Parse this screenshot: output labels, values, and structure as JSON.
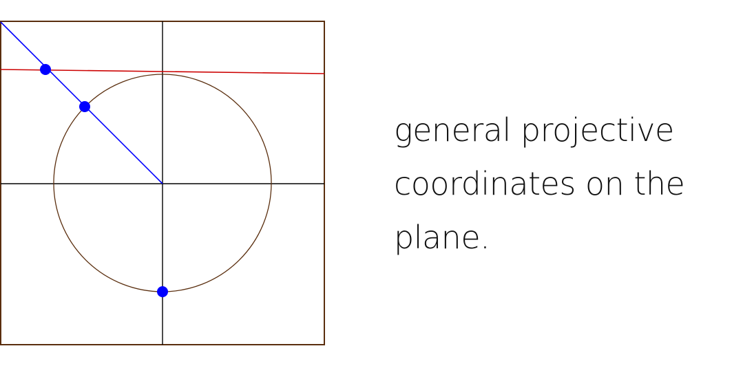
{
  "caption": {
    "lines": [
      "general projective",
      "coordinates on the",
      "plane."
    ]
  },
  "diagram": {
    "colors": {
      "frame": "#5a2e0e",
      "axes": "#000000",
      "circle": "#5a2e0e",
      "projection_line": "#0000ff",
      "horizon_line": "#cc0000",
      "points": "#0000ff"
    },
    "elements": [
      "frame",
      "x-axis",
      "y-axis",
      "circle",
      "projection-line",
      "horizon-line",
      "point-south-pole",
      "point-on-circle",
      "point-on-horizon"
    ]
  }
}
